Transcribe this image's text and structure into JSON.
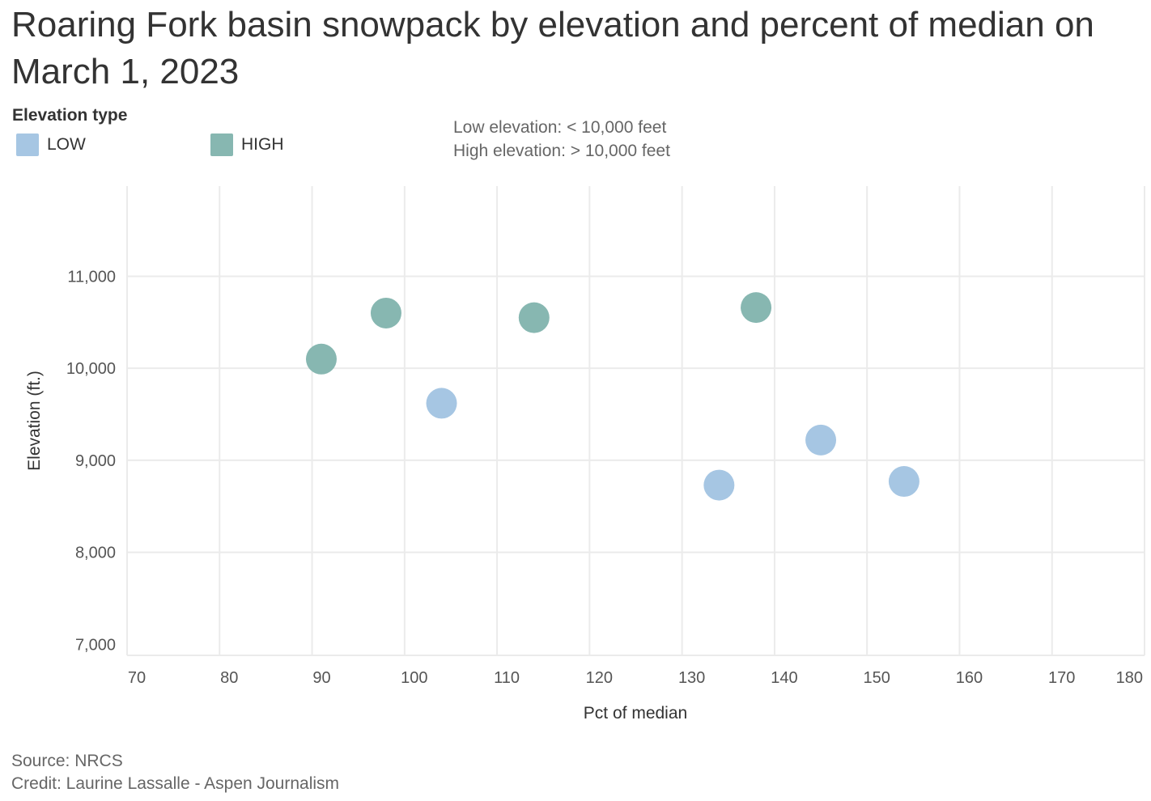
{
  "title": "Roaring Fork basin snowpack by elevation and percent of median on March 1, 2023",
  "legend": {
    "title": "Elevation type",
    "items": [
      {
        "label": "LOW",
        "color": "#a6c6e3"
      },
      {
        "label": "HIGH",
        "color": "#87b7b1"
      }
    ]
  },
  "notes": {
    "low": "Low elevation: < 10,000 feet",
    "high": "High elevation: > 10,000 feet"
  },
  "footer": {
    "source": "Source: NRCS",
    "credit": "Credit: Laurine Lassalle - Aspen Journalism"
  },
  "chart_data": {
    "type": "scatter",
    "xlabel": "Pct of median",
    "ylabel": "Elevation (ft.)",
    "xlim": [
      70,
      180
    ],
    "ylim": [
      6880,
      11980
    ],
    "xticks": [
      70,
      80,
      90,
      100,
      110,
      120,
      130,
      140,
      150,
      160,
      170,
      180
    ],
    "yticks": [
      7000,
      8000,
      9000,
      10000,
      11000
    ],
    "yticklabels": [
      "7,000",
      "8,000",
      "9,000",
      "10,000",
      "11,000"
    ],
    "grid": true,
    "legend_position": "top-left",
    "series": [
      {
        "name": "LOW",
        "color": "#a6c6e3",
        "points": [
          {
            "x": 104,
            "y": 9620
          },
          {
            "x": 134,
            "y": 8730
          },
          {
            "x": 145,
            "y": 9220
          },
          {
            "x": 154,
            "y": 8770
          }
        ]
      },
      {
        "name": "HIGH",
        "color": "#87b7b1",
        "points": [
          {
            "x": 91,
            "y": 10100
          },
          {
            "x": 98,
            "y": 10600
          },
          {
            "x": 114,
            "y": 10550
          },
          {
            "x": 138,
            "y": 10660
          }
        ]
      }
    ]
  }
}
